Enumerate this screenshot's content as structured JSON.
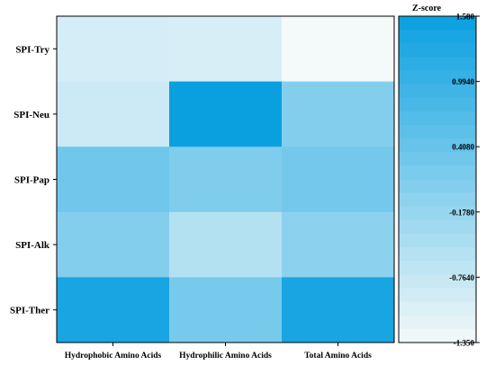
{
  "chart_data": {
    "type": "heatmap",
    "title": "",
    "xlabel": "",
    "ylabel": "",
    "x_categories": [
      "Hydrophobic Amino Acids",
      "Hydrophilic Amino Acids",
      "Total Amino Acids"
    ],
    "y_categories": [
      "SPI-Try",
      "SPI-Neu",
      "SPI-Pap",
      "SPI-Alk",
      "SPI-Ther"
    ],
    "values": [
      [
        -0.95,
        -1.0,
        -1.35
      ],
      [
        -0.85,
        1.58,
        0.05
      ],
      [
        0.3,
        0.12,
        0.25
      ],
      [
        0.05,
        -0.55,
        -0.05
      ],
      [
        1.4,
        0.2,
        1.4
      ]
    ],
    "colorbar": {
      "title": "Z-score",
      "ticks": [
        "1.580",
        "0.9940",
        "0.4080",
        "-0.1780",
        "-0.7640",
        "-1.350"
      ],
      "tick_values": [
        1.58,
        0.994,
        0.408,
        -0.178,
        -0.764,
        -1.35
      ],
      "range": [
        -1.35,
        1.58
      ],
      "color_low": "#f4f9f9",
      "color_high": "#0aa0e0"
    },
    "grid": false
  }
}
